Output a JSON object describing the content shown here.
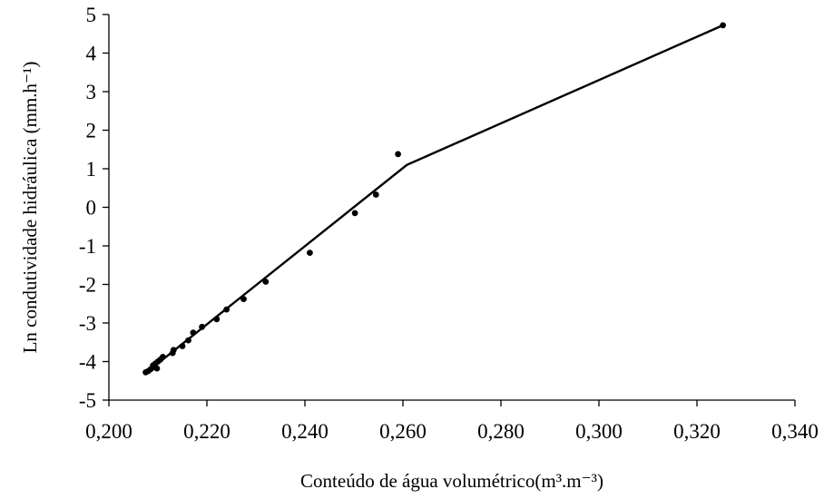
{
  "chart_data": {
    "type": "scatter",
    "title": "",
    "xlabel": "Conteúdo de água volumétrico(m³.m⁻³)",
    "ylabel": "Ln condutividade hidráulica (mm.h⁻¹)",
    "xlim": [
      0.2,
      0.34
    ],
    "ylim": [
      -5,
      5
    ],
    "x_ticks": [
      0.2,
      0.22,
      0.24,
      0.26,
      0.28,
      0.3,
      0.32,
      0.34
    ],
    "x_tick_labels": [
      "0,200",
      "0,220",
      "0,240",
      "0,260",
      "0,280",
      "0,300",
      "0,320",
      "0,340"
    ],
    "y_ticks": [
      -5,
      -4,
      -3,
      -2,
      -1,
      0,
      1,
      2,
      3,
      4,
      5
    ],
    "y_tick_labels": [
      "-5",
      "-4",
      "-3",
      "-2",
      "-1",
      "0",
      "1",
      "2",
      "3",
      "4",
      "5"
    ],
    "grid": false,
    "legend": "none",
    "series": [
      {
        "kind": "points",
        "x": [
          0.2075,
          0.208,
          0.2085,
          0.209,
          0.2093,
          0.2095,
          0.2098,
          0.21,
          0.2105,
          0.211,
          0.213,
          0.2132,
          0.215,
          0.2162,
          0.2172,
          0.219,
          0.222,
          0.224,
          0.2275,
          0.232,
          0.241,
          0.2502,
          0.2545,
          0.259,
          0.3253
        ],
        "y": [
          -4.28,
          -4.25,
          -4.2,
          -4.1,
          -4.15,
          -4.05,
          -4.18,
          -4.0,
          -3.95,
          -3.88,
          -3.78,
          -3.7,
          -3.6,
          -3.45,
          -3.25,
          -3.1,
          -2.9,
          -2.65,
          -2.38,
          -1.93,
          -1.18,
          -0.15,
          0.33,
          1.38,
          4.72
        ]
      },
      {
        "kind": "line",
        "x": [
          0.2075,
          0.2608,
          0.3253
        ],
        "y": [
          -4.3,
          1.1,
          4.72
        ]
      }
    ]
  }
}
